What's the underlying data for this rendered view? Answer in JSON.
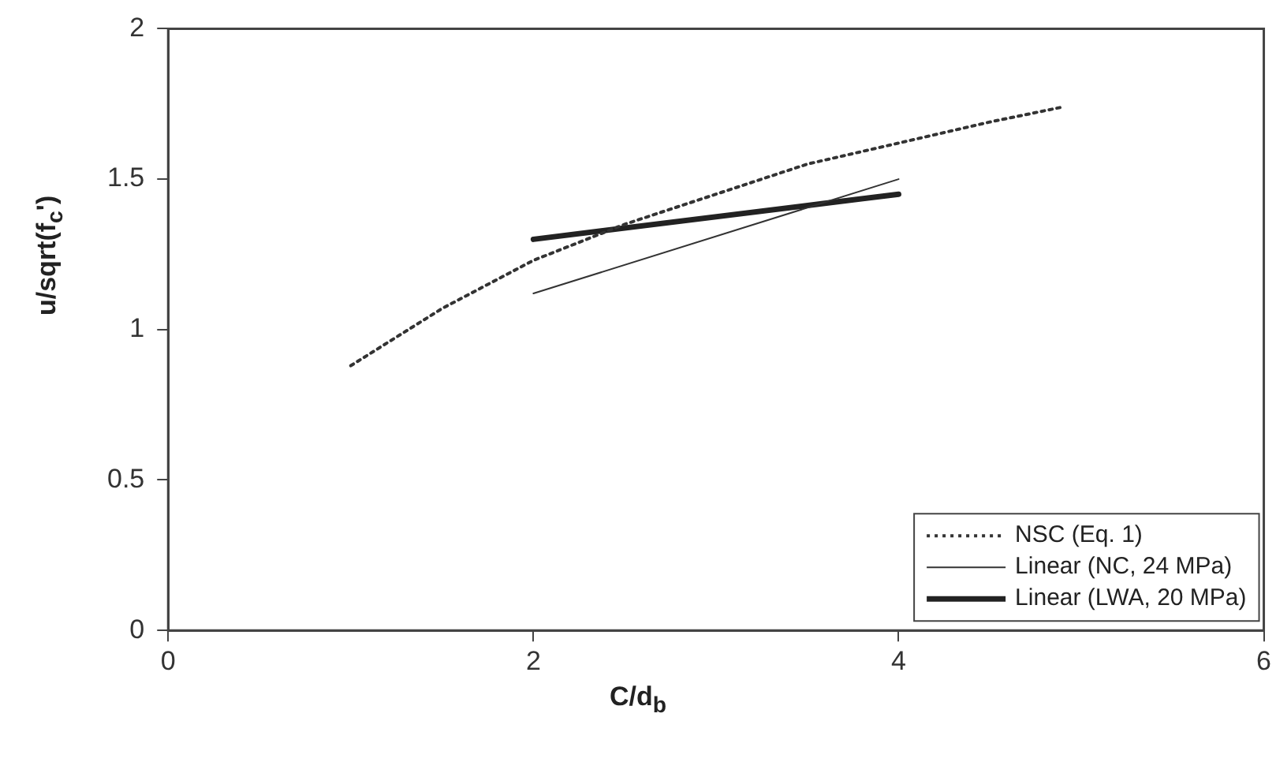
{
  "chart_data": {
    "type": "line",
    "xlabel": "C/d$_{b}$",
    "ylabel": "u/sqrt(f$_{c}$')",
    "xlim": [
      0,
      6
    ],
    "xticks": [
      0,
      2,
      4,
      6
    ],
    "ylim": [
      0,
      2
    ],
    "yticks": [
      0,
      0.5,
      1,
      1.5,
      2
    ],
    "grid": false,
    "legend": "bottom right",
    "marker": "none",
    "series": [
      {
        "name": "NSC (Eq. 1)",
        "color": "#333333",
        "line_style": "dotted",
        "x": [
          1,
          1.5,
          2,
          2.5,
          3,
          3.5,
          4,
          4.5,
          4.9
        ],
        "values": [
          0.88,
          1.07,
          1.23,
          1.35,
          1.45,
          1.55,
          1.62,
          1.69,
          1.74
        ]
      },
      {
        "name": "Linear (NC, 24 MPa)",
        "color": "#333333",
        "line_style": "solid",
        "x": [
          2,
          4
        ],
        "values": [
          1.12,
          1.5
        ]
      },
      {
        "name": "Linear (LWA, 20 MPa)",
        "color": "#222222",
        "line_style": "solid",
        "x": [
          2,
          4
        ],
        "values": [
          1.3,
          1.45
        ]
      }
    ]
  }
}
